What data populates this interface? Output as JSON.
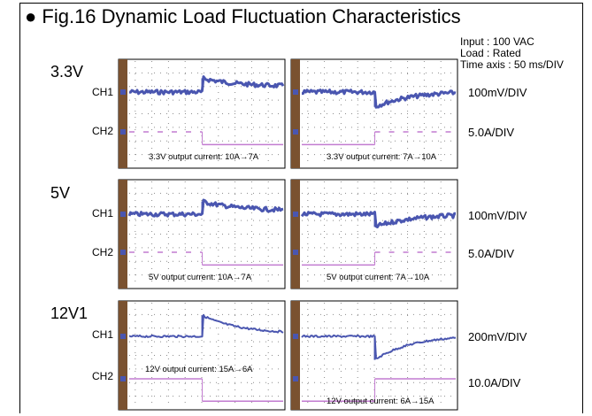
{
  "title": "● Fig.16  Dynamic Load Fluctuation Characteristics",
  "conditions": {
    "input": "Input : 100 VAC",
    "load": "Load : Rated",
    "time_axis": "Time axis : 50 ms/DIV"
  },
  "colors": {
    "ch1": "#4a56b0",
    "ch2": "#c27bd0",
    "marker": "#7a5230",
    "grid": "#8c8c8c",
    "background": "#ffffff"
  },
  "chart_data": [
    {
      "type": "line",
      "section": "3.3V",
      "caption": "3.3V output current: 10A→7A",
      "time_axis": "50 ms/DIV",
      "ch1_label": "CH1",
      "ch2_label": "CH2",
      "ch1_scale": "100mV/DIV",
      "ch2_scale": "5.0A/DIV",
      "step_at_div": 2.5,
      "series": [
        {
          "channel": "CH1",
          "shape": "overshoot-decay",
          "before_div": 0,
          "peak_div": 0.65,
          "after_div": 0.25,
          "noise_div": 0.1
        },
        {
          "channel": "CH2",
          "shape": "step",
          "before_div": 0,
          "after_div": -0.6,
          "before_style": "dashed"
        }
      ]
    },
    {
      "type": "line",
      "section": "3.3V",
      "caption": "3.3V output current: 7A→10A",
      "time_axis": "50 ms/DIV",
      "ch1_label": "CH1",
      "ch2_label": "CH2",
      "ch1_scale": "100mV/DIV",
      "ch2_scale": "5.0A/DIV",
      "step_at_div": 2.5,
      "series": [
        {
          "channel": "CH1",
          "shape": "undershoot-recover",
          "before_div": 0,
          "peak_div": -0.7,
          "after_div": 0.05,
          "noise_div": 0.1
        },
        {
          "channel": "CH2",
          "shape": "step",
          "before_div": -0.6,
          "after_div": 0,
          "after_style": "dashed"
        }
      ]
    },
    {
      "type": "line",
      "section": "5V",
      "caption": "5V output current: 10A→7A",
      "time_axis": "50 ms/DIV",
      "ch1_label": "CH1",
      "ch2_label": "CH2",
      "ch1_scale": "100mV/DIV",
      "ch2_scale": "5.0A/DIV",
      "step_at_div": 2.5,
      "series": [
        {
          "channel": "CH1",
          "shape": "overshoot-decay",
          "before_div": 0,
          "peak_div": 0.6,
          "after_div": 0.15,
          "noise_div": 0.1
        },
        {
          "channel": "CH2",
          "shape": "step",
          "before_div": 0,
          "after_div": -0.6,
          "before_style": "dashed"
        }
      ]
    },
    {
      "type": "line",
      "section": "5V",
      "caption": "5V output current: 7A→10A",
      "time_axis": "50 ms/DIV",
      "ch1_label": "CH1",
      "ch2_label": "CH2",
      "ch1_scale": "100mV/DIV",
      "ch2_scale": "5.0A/DIV",
      "step_at_div": 2.5,
      "series": [
        {
          "channel": "CH1",
          "shape": "undershoot-recover",
          "before_div": 0,
          "peak_div": -0.6,
          "after_div": 0,
          "noise_div": 0.1
        },
        {
          "channel": "CH2",
          "shape": "step",
          "before_div": -0.6,
          "after_div": 0,
          "after_style": "dashed"
        }
      ]
    },
    {
      "type": "line",
      "section": "12V1",
      "caption": "12V output current: 15A→6A",
      "time_axis": "50 ms/DIV",
      "ch1_label": "CH1",
      "ch2_label": "CH2",
      "ch1_scale": "200mV/DIV",
      "ch2_scale": "10.0A/DIV",
      "step_at_div": 2.5,
      "series": [
        {
          "channel": "CH1",
          "shape": "overshoot-decay",
          "before_div": 0,
          "peak_div": 0.85,
          "after_div": 0.1,
          "noise_div": 0.04
        },
        {
          "channel": "CH2",
          "shape": "step",
          "before_div": 0,
          "after_div": -0.9
        }
      ]
    },
    {
      "type": "line",
      "section": "12V1",
      "caption": "12V output current: 6A→15A",
      "time_axis": "50 ms/DIV",
      "ch1_label": "CH1",
      "ch2_label": "CH2",
      "ch1_scale": "200mV/DIV",
      "ch2_scale": "10.0A/DIV",
      "step_at_div": 2.5,
      "series": [
        {
          "channel": "CH1",
          "shape": "undershoot-recover",
          "before_div": 0,
          "peak_div": -0.95,
          "after_div": 0.05,
          "noise_div": 0.04
        },
        {
          "channel": "CH2",
          "shape": "step",
          "before_div": -0.9,
          "after_div": 0
        }
      ]
    }
  ]
}
